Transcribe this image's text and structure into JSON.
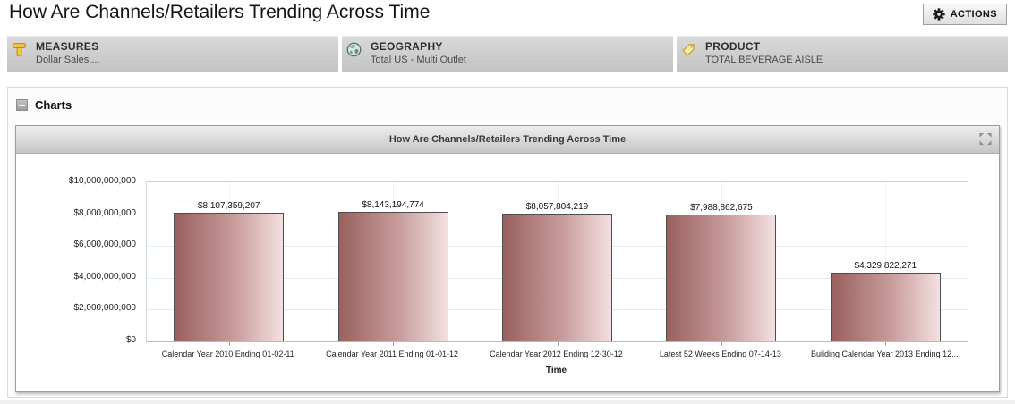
{
  "page": {
    "title": "How Are Channels/Retailers Trending Across Time"
  },
  "actions_button": {
    "label": "ACTIONS",
    "icon": "gear-icon"
  },
  "filters": [
    {
      "label": "MEASURES",
      "value": "Dollar Sales,...",
      "icon": "measures-icon"
    },
    {
      "label": "GEOGRAPHY",
      "value": "Total US - Multi Outlet",
      "icon": "globe-icon"
    },
    {
      "label": "PRODUCT",
      "value": "TOTAL BEVERAGE AISLE",
      "icon": "tag-icon"
    }
  ],
  "charts_section": {
    "title": "Charts",
    "collapse_icon": "minus-icon"
  },
  "chart_panel": {
    "title": "How Are Channels/Retailers Trending Across Time",
    "expand_icon": "expand-icon"
  },
  "chart_data": {
    "type": "bar",
    "title": "How Are Channels/Retailers Trending Across Time",
    "categories": [
      "Calendar Year 2010 Ending 01-02-11",
      "Calendar Year 2011 Ending 01-01-12",
      "Calendar Year 2012 Ending 12-30-12",
      "Latest 52 Weeks Ending 07-14-13",
      "Building Calendar Year 2013 Ending 12..."
    ],
    "values": [
      8107359207,
      8143194774,
      8057804219,
      7988862675,
      4329822271
    ],
    "value_labels": [
      "$8,107,359,207",
      "$8,143,194,774",
      "$8,057,804,219",
      "$7,988,862,675",
      "$4,329,822,271"
    ],
    "xlabel": "Time",
    "ylabel": "",
    "ylim": [
      0,
      10000000000
    ],
    "ytick_labels": [
      "$0",
      "$2,000,000,000",
      "$4,000,000,000",
      "$6,000,000,000",
      "$8,000,000,000",
      "$10,000,000,000"
    ],
    "grid": true,
    "legend": false,
    "bar_gradient": [
      "#99605f",
      "#c79c9b",
      "#f3e0e0"
    ],
    "bar_border_color": "#4e4e4e"
  }
}
